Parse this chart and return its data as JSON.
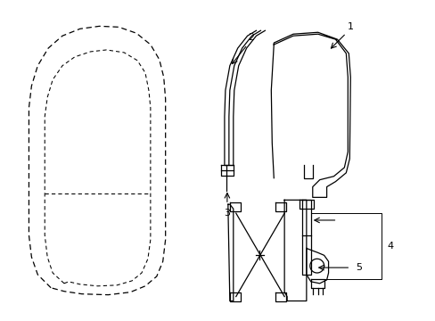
{
  "background_color": "#ffffff",
  "line_color": "#000000",
  "fig_width": 4.89,
  "fig_height": 3.6,
  "dpi": 100
}
